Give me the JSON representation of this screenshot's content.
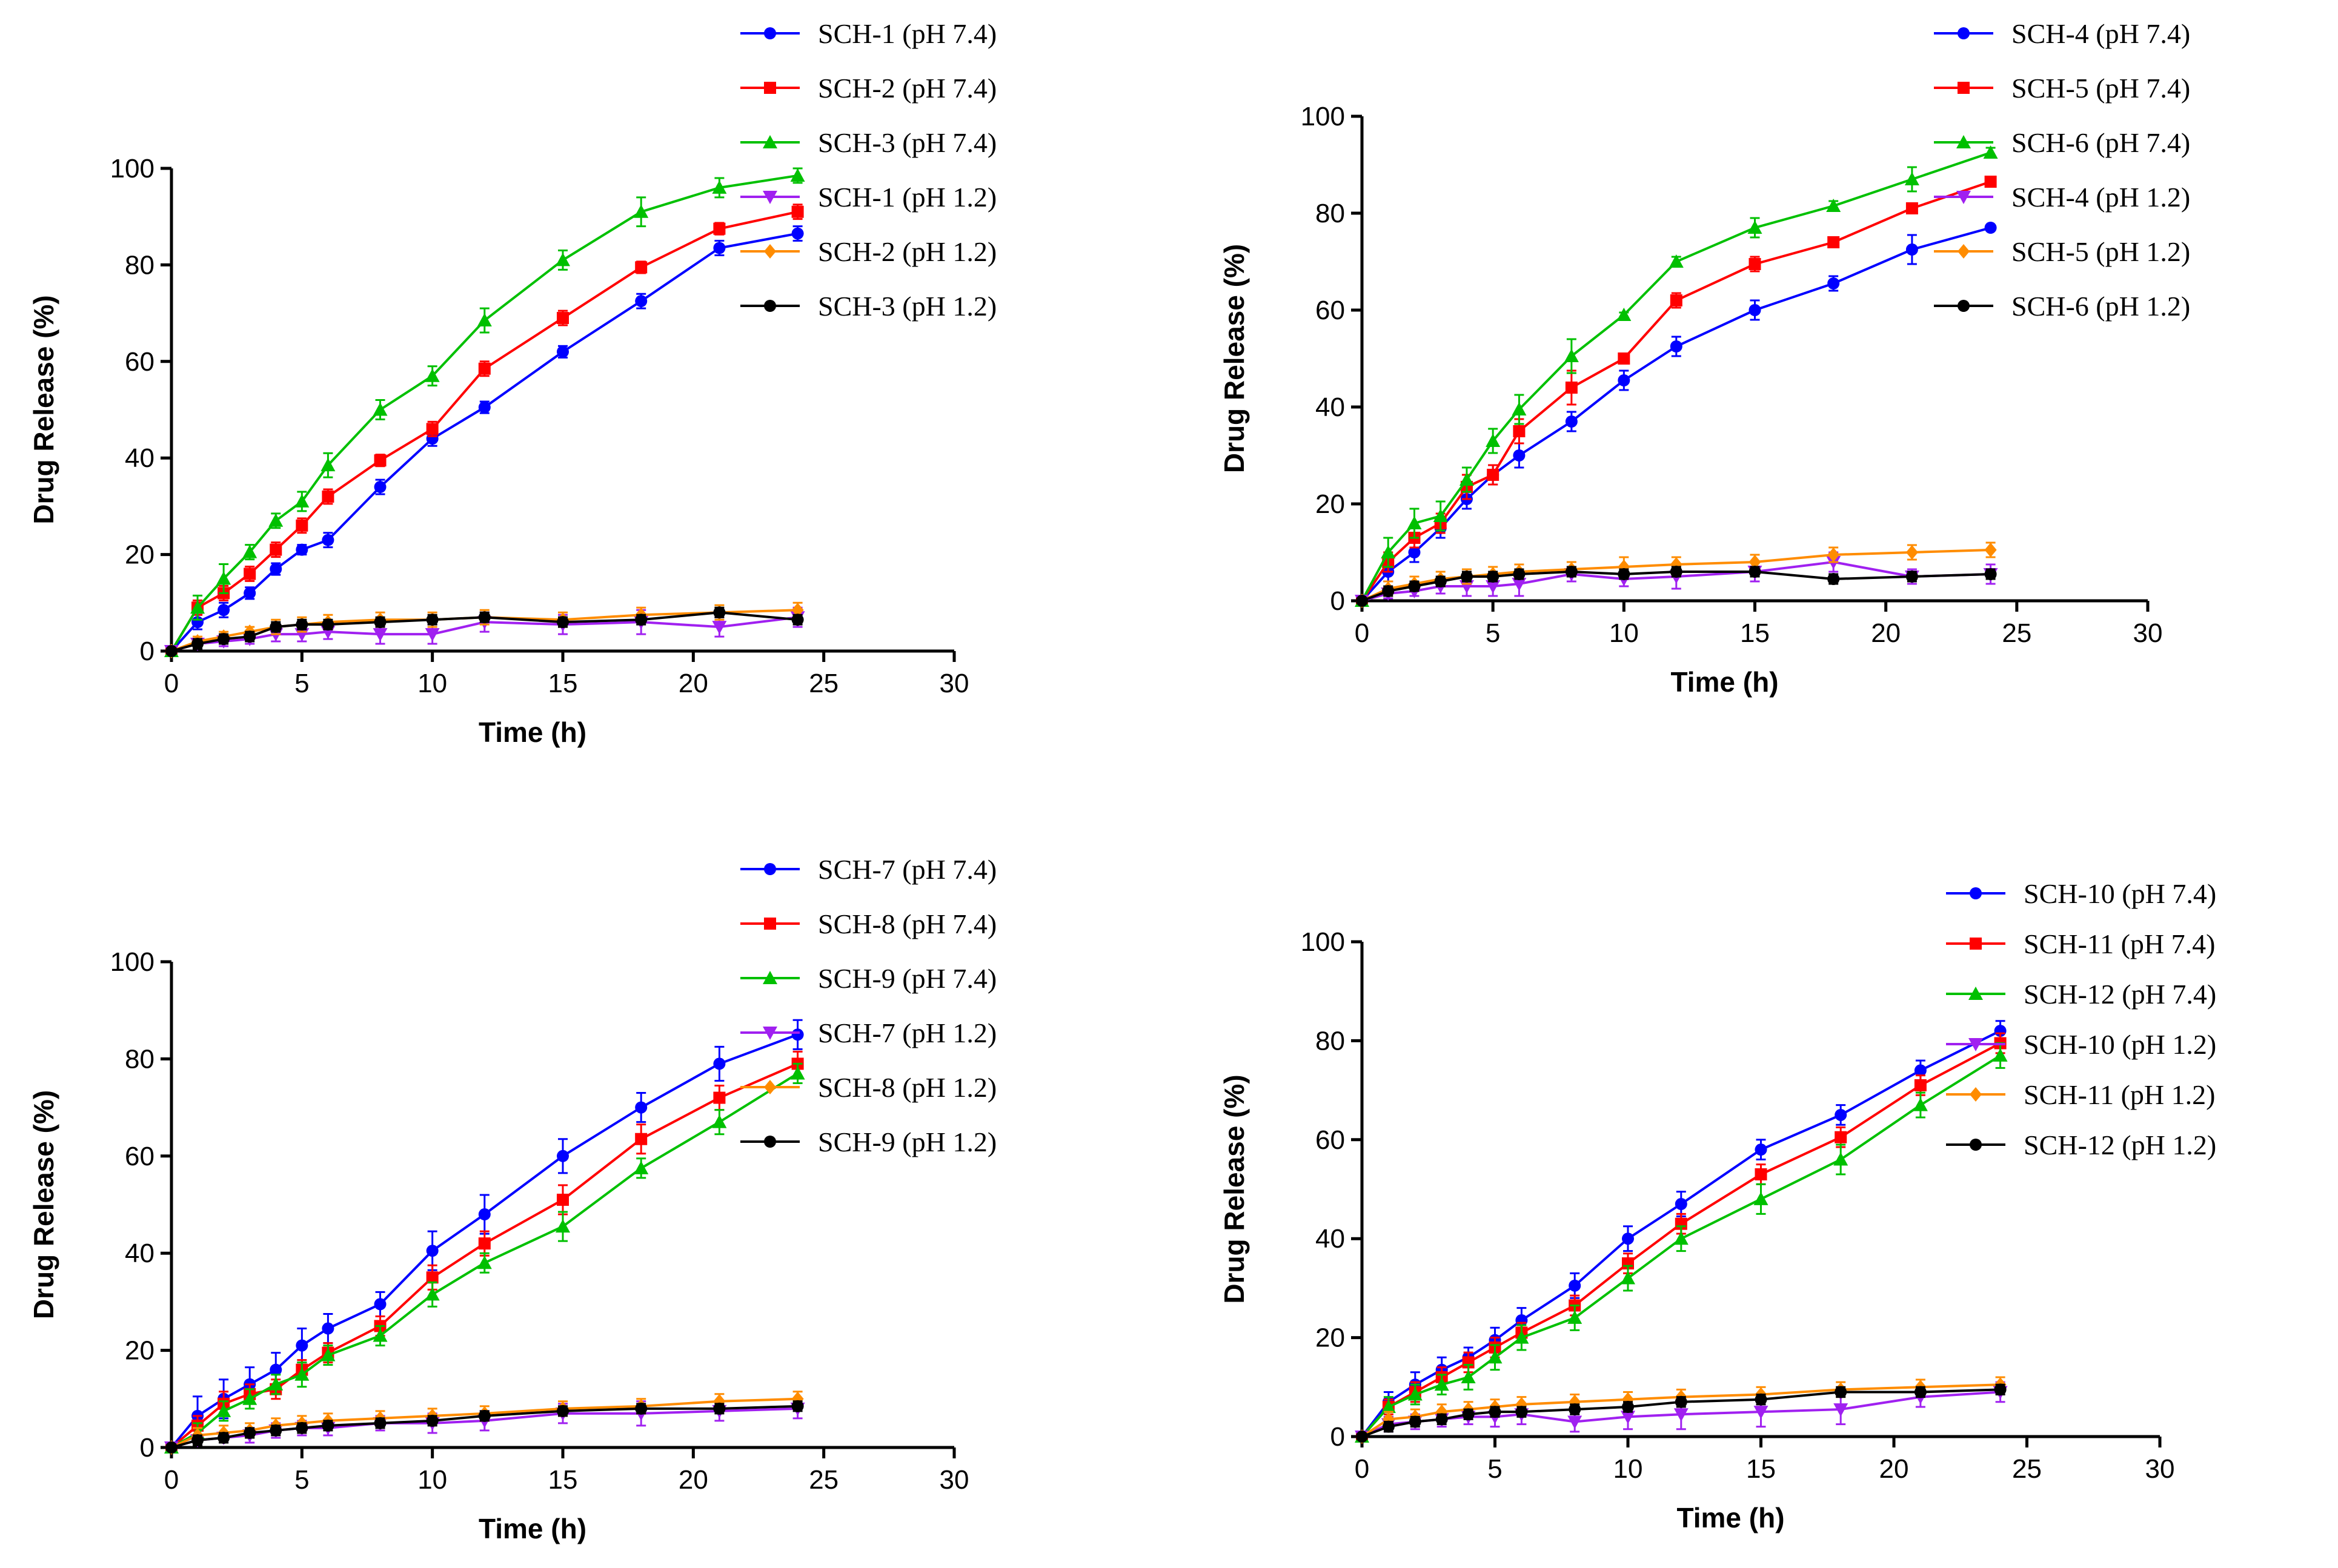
{
  "chart_data": [
    {
      "type": "line",
      "panel": "top-left",
      "xlabel": "Time (h)",
      "ylabel": "Drug Release (%)",
      "xlim": [
        0,
        30
      ],
      "ylim": [
        0,
        100
      ],
      "xticks": [
        0,
        5,
        10,
        15,
        20,
        25,
        30
      ],
      "yticks": [
        0,
        20,
        40,
        60,
        80,
        100
      ],
      "x": [
        0,
        1,
        2,
        3,
        4,
        5,
        6,
        8,
        10,
        12,
        15,
        18,
        21,
        24
      ],
      "legend_position": "top-right",
      "series": [
        {
          "name": "SCH-1 (pH 7.4)",
          "color": "#0000ff",
          "marker": "circle",
          "values": [
            0,
            6,
            8.5,
            12,
            17,
            21,
            23,
            34,
            44,
            50.5,
            62,
            72.5,
            83.5,
            86.5
          ],
          "errors": [
            1,
            1.5,
            1.5,
            1.2,
            1.2,
            1,
            1.5,
            1.5,
            1.5,
            1.2,
            1.2,
            1.5,
            1.5,
            1.5
          ]
        },
        {
          "name": "SCH-2 (pH 7.4)",
          "color": "#ff0000",
          "marker": "square",
          "values": [
            0,
            9,
            12,
            16,
            21,
            26,
            32,
            39.5,
            46,
            58.5,
            69,
            79.5,
            87.5,
            91
          ],
          "errors": [
            1,
            1.5,
            1.5,
            1.5,
            1.5,
            1.5,
            1.5,
            1.2,
            1.5,
            1.5,
            1.5,
            1.2,
            1.2,
            1.5
          ]
        },
        {
          "name": "SCH-3 (pH 7.4)",
          "color": "#00c000",
          "marker": "triangle-up",
          "values": [
            0,
            9,
            15,
            20.5,
            27,
            31,
            38.5,
            50,
            57,
            68.5,
            81,
            91,
            96,
            98.5
          ],
          "errors": [
            1,
            2.5,
            3,
            1.5,
            1.5,
            2,
            2.5,
            2,
            2,
            2.5,
            2,
            3,
            2,
            1.5
          ]
        },
        {
          "name": "SCH-1 (pH 1.2)",
          "color": "#a020f0",
          "marker": "triangle-down",
          "values": [
            0,
            1.5,
            2,
            2.5,
            3.5,
            3.5,
            4,
            3.5,
            3.5,
            6,
            5.5,
            6,
            5,
            7
          ],
          "errors": [
            0.5,
            1,
            1,
            1,
            1.5,
            1.5,
            1.5,
            2,
            2,
            2,
            2,
            2.5,
            2,
            2
          ]
        },
        {
          "name": "SCH-2 (pH 1.2)",
          "color": "#ff8c00",
          "marker": "diamond",
          "values": [
            0,
            2,
            3,
            4,
            5,
            5.5,
            6,
            6.5,
            6.5,
            7,
            6.5,
            7.5,
            8,
            8.5
          ],
          "errors": [
            0.5,
            1,
            1,
            1,
            1.5,
            1.5,
            1.5,
            1.5,
            1.5,
            1.5,
            1.5,
            1.5,
            1.5,
            1.5
          ]
        },
        {
          "name": "SCH-3 (pH 1.2)",
          "color": "#000000",
          "marker": "circle",
          "values": [
            0,
            1.5,
            2.5,
            3,
            5,
            5.5,
            5.5,
            6,
            6.5,
            7,
            6,
            6.5,
            8,
            6.5
          ],
          "errors": [
            0.5,
            1,
            1,
            1,
            1,
            1,
            1,
            1,
            1,
            1,
            1,
            1,
            1,
            1
          ]
        }
      ]
    },
    {
      "type": "line",
      "panel": "top-right",
      "xlabel": "Time (h)",
      "ylabel": "Drug Release (%)",
      "xlim": [
        0,
        30
      ],
      "ylim": [
        0,
        100
      ],
      "xticks": [
        0,
        5,
        10,
        15,
        20,
        25,
        30
      ],
      "yticks": [
        0,
        20,
        40,
        60,
        80,
        100
      ],
      "x": [
        0,
        1,
        2,
        3,
        4,
        5,
        6,
        8,
        10,
        12,
        15,
        18,
        21,
        24
      ],
      "legend_position": "top-right",
      "series": [
        {
          "name": "SCH-4 (pH 7.4)",
          "color": "#0000ff",
          "marker": "circle",
          "values": [
            0,
            6,
            10,
            15,
            21,
            26,
            30,
            37,
            45.5,
            52.5,
            60,
            65.5,
            72.5,
            77
          ],
          "errors": [
            1,
            2,
            2,
            2,
            2,
            2,
            2.5,
            2,
            2,
            2,
            2,
            1.5,
            3,
            0.5
          ]
        },
        {
          "name": "SCH-5 (pH 7.4)",
          "color": "#ff0000",
          "marker": "square",
          "values": [
            0,
            8,
            13,
            16,
            23.5,
            26,
            35,
            44,
            50,
            62,
            69.5,
            74,
            81,
            86.5
          ],
          "errors": [
            1,
            2,
            2,
            2,
            2.5,
            2,
            2.5,
            3.5,
            1,
            1.5,
            1.5,
            1,
            0.5,
            0.5
          ]
        },
        {
          "name": "SCH-6 (pH 7.4)",
          "color": "#00c000",
          "marker": "triangle-up",
          "values": [
            0,
            10,
            16,
            17.5,
            25,
            33,
            39.5,
            50.5,
            59,
            70,
            77,
            81.5,
            87,
            92.5
          ],
          "errors": [
            1,
            3,
            3,
            3,
            2.5,
            2.5,
            3,
            3.5,
            0.5,
            1,
            2,
            1,
            2.5,
            1
          ]
        },
        {
          "name": "SCH-4 (pH 1.2)",
          "color": "#a020f0",
          "marker": "triangle-down",
          "values": [
            0,
            1.5,
            2,
            3,
            3,
            3,
            3.5,
            5.5,
            4.5,
            5,
            6,
            8,
            5,
            5.5
          ],
          "errors": [
            0.5,
            1,
            1,
            1.5,
            2,
            2,
            2.5,
            1.5,
            1.5,
            2.5,
            2,
            2,
            1.5,
            2
          ]
        },
        {
          "name": "SCH-5 (pH 1.2)",
          "color": "#ff8c00",
          "marker": "diamond",
          "values": [
            0,
            2.5,
            3.5,
            4.5,
            5,
            5.5,
            6,
            6.5,
            7,
            7.5,
            8,
            9.5,
            10,
            10.5
          ],
          "errors": [
            0.5,
            1.5,
            1.5,
            1.5,
            1.5,
            1.5,
            1.5,
            1.5,
            2,
            1.5,
            1.5,
            1.5,
            1.5,
            1.5
          ]
        },
        {
          "name": "SCH-6 (pH 1.2)",
          "color": "#000000",
          "marker": "circle",
          "values": [
            0,
            2,
            3,
            4,
            5,
            5,
            5.5,
            6,
            5.5,
            6,
            6,
            4.5,
            5,
            5.5
          ],
          "errors": [
            0.5,
            1,
            1,
            1,
            1,
            1,
            1,
            1,
            1,
            1,
            1,
            1,
            1,
            1
          ]
        }
      ]
    },
    {
      "type": "line",
      "panel": "bottom-left",
      "xlabel": "Time (h)",
      "ylabel": "Drug Release (%)",
      "xlim": [
        0,
        30
      ],
      "ylim": [
        0,
        100
      ],
      "xticks": [
        0,
        5,
        10,
        15,
        20,
        25,
        30
      ],
      "yticks": [
        0,
        20,
        40,
        60,
        80,
        100
      ],
      "x": [
        0,
        1,
        2,
        3,
        4,
        5,
        6,
        8,
        10,
        12,
        15,
        18,
        21,
        24
      ],
      "legend_position": "top-right",
      "series": [
        {
          "name": "SCH-7 (pH 7.4)",
          "color": "#0000ff",
          "marker": "circle",
          "values": [
            0,
            6.5,
            10,
            13,
            16,
            21,
            24.5,
            29.5,
            40.5,
            48,
            60,
            70,
            79,
            85
          ],
          "errors": [
            1,
            4,
            4,
            3.5,
            3.5,
            3.5,
            3,
            2.5,
            4,
            4,
            3.5,
            3,
            3.5,
            3
          ]
        },
        {
          "name": "SCH-8 (pH 7.4)",
          "color": "#ff0000",
          "marker": "square",
          "values": [
            0,
            4.5,
            9,
            11,
            12,
            16,
            19.5,
            25,
            35,
            42,
            51,
            63.5,
            72,
            79
          ],
          "errors": [
            1,
            2,
            2.5,
            2,
            2,
            2,
            2,
            2,
            2.5,
            2.5,
            3,
            3,
            2.5,
            2.5
          ]
        },
        {
          "name": "SCH-9 (pH 7.4)",
          "color": "#00c000",
          "marker": "triangle-up",
          "values": [
            0,
            3,
            7.5,
            10,
            13,
            15,
            19,
            23,
            31.5,
            38,
            45.5,
            57.5,
            67,
            77
          ],
          "errors": [
            1,
            2,
            2,
            2,
            2,
            2.5,
            2,
            2,
            2.5,
            2,
            3,
            2,
            2.5,
            2
          ]
        },
        {
          "name": "SCH-7 (pH 1.2)",
          "color": "#a020f0",
          "marker": "triangle-down",
          "values": [
            0,
            1.5,
            2,
            2.5,
            3.5,
            4,
            4,
            5,
            5,
            5.5,
            7,
            7,
            7.5,
            8
          ],
          "errors": [
            0.5,
            1,
            1,
            1.5,
            1.5,
            1.5,
            1.5,
            1.5,
            2,
            2,
            2,
            2.5,
            2,
            2
          ]
        },
        {
          "name": "SCH-8 (pH 1.2)",
          "color": "#ff8c00",
          "marker": "diamond",
          "values": [
            0,
            2.5,
            3,
            3.5,
            4.5,
            5,
            5.5,
            6,
            6.5,
            7,
            8,
            8.5,
            9.5,
            10
          ],
          "errors": [
            0.5,
            1.5,
            1.5,
            1.5,
            1.5,
            1.5,
            1.5,
            1.5,
            1.5,
            1.5,
            1.5,
            1.5,
            1.5,
            1.5
          ]
        },
        {
          "name": "SCH-9 (pH 1.2)",
          "color": "#000000",
          "marker": "circle",
          "values": [
            0,
            1.5,
            2,
            3,
            3.5,
            4,
            4.5,
            5,
            5.5,
            6.5,
            7.5,
            8,
            8,
            8.5
          ],
          "errors": [
            0.5,
            1,
            1,
            1,
            1,
            1,
            1,
            1,
            1,
            1,
            1,
            1,
            1,
            1
          ]
        }
      ]
    },
    {
      "type": "line",
      "panel": "bottom-right",
      "xlabel": "Time (h)",
      "ylabel": "Drug  Release (%)",
      "xlim": [
        0,
        30
      ],
      "ylim": [
        0,
        100
      ],
      "xticks": [
        0,
        5,
        10,
        15,
        20,
        25,
        30
      ],
      "yticks": [
        0,
        20,
        40,
        60,
        80,
        100
      ],
      "x": [
        0,
        1,
        2,
        3,
        4,
        5,
        6,
        8,
        10,
        12,
        15,
        18,
        21,
        24
      ],
      "legend_position": "top-right",
      "series": [
        {
          "name": "SCH-10 (pH 7.4)",
          "color": "#0000ff",
          "marker": "circle",
          "values": [
            0,
            7,
            10.5,
            13.5,
            16,
            19.5,
            23.5,
            30.5,
            40,
            47,
            58,
            65,
            74,
            82
          ],
          "errors": [
            1,
            2,
            2.5,
            2.5,
            2,
            2.5,
            2.5,
            2.5,
            2.5,
            2.5,
            2,
            2,
            2,
            2
          ]
        },
        {
          "name": "SCH-11 (pH 7.4)",
          "color": "#ff0000",
          "marker": "square",
          "values": [
            0,
            6,
            9,
            12,
            15,
            18,
            21,
            26.5,
            35,
            43,
            53,
            60.5,
            71,
            79.5
          ],
          "errors": [
            1,
            1.5,
            2,
            2,
            2,
            2,
            2,
            2,
            2,
            2,
            2,
            2,
            2,
            2
          ]
        },
        {
          "name": "SCH-12 (pH 7.4)",
          "color": "#00c000",
          "marker": "triangle-up",
          "values": [
            0,
            6,
            8.5,
            10.5,
            12,
            16,
            20,
            24,
            32,
            40,
            48,
            56,
            67,
            77
          ],
          "errors": [
            1,
            2,
            2,
            2,
            2.5,
            2.5,
            2.5,
            2.5,
            2.5,
            2.5,
            3,
            3,
            2.5,
            2.5
          ]
        },
        {
          "name": "SCH-10 (pH 1.2)",
          "color": "#a020f0",
          "marker": "triangle-down",
          "values": [
            0,
            2.5,
            3,
            3.5,
            4,
            4,
            4.5,
            3,
            4,
            4.5,
            5,
            5.5,
            8,
            9
          ],
          "errors": [
            0.5,
            1.5,
            1.5,
            1.5,
            1.5,
            2,
            2,
            2,
            2.5,
            3,
            3,
            3,
            2,
            2
          ]
        },
        {
          "name": "SCH-11 (pH 1.2)",
          "color": "#ff8c00",
          "marker": "diamond",
          "values": [
            0,
            3.5,
            4,
            5,
            5.5,
            6,
            6.5,
            7,
            7.5,
            8,
            8.5,
            9.5,
            10,
            10.5
          ],
          "errors": [
            0.5,
            1.5,
            1.5,
            1.5,
            1.5,
            1.5,
            1.5,
            1.5,
            1.5,
            1.5,
            1.5,
            1.5,
            1.5,
            1.5
          ]
        },
        {
          "name": "SCH-12 (pH 1.2)",
          "color": "#000000",
          "marker": "circle",
          "values": [
            0,
            2,
            3,
            3.5,
            4.5,
            5,
            5,
            5.5,
            6,
            7,
            7.5,
            9,
            9,
            9.5
          ],
          "errors": [
            0.5,
            1,
            1,
            1,
            1,
            1,
            1,
            1,
            1,
            1,
            1,
            1,
            1,
            1
          ]
        }
      ]
    }
  ]
}
